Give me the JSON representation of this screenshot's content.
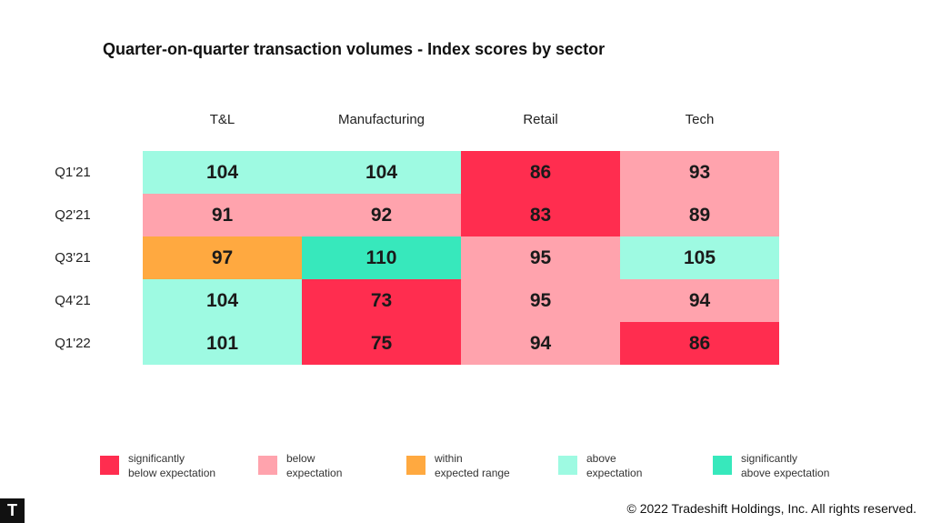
{
  "chart_data": {
    "type": "heatmap",
    "title": "Quarter-on-quarter transaction volumes - Index scores by sector",
    "columns": [
      "T&L",
      "Manufacturing",
      "Retail",
      "Tech"
    ],
    "rows": [
      "Q1'21",
      "Q2'21",
      "Q3'21",
      "Q4'21",
      "Q1'22"
    ],
    "values": [
      [
        104,
        104,
        86,
        93
      ],
      [
        91,
        92,
        83,
        89
      ],
      [
        97,
        110,
        95,
        105
      ],
      [
        104,
        73,
        95,
        94
      ],
      [
        101,
        75,
        94,
        86
      ]
    ],
    "categories": [
      [
        "above",
        "above",
        "sig_below",
        "below"
      ],
      [
        "below",
        "below",
        "sig_below",
        "below"
      ],
      [
        "within",
        "sig_above",
        "below",
        "above"
      ],
      [
        "above",
        "sig_below",
        "below",
        "below"
      ],
      [
        "above",
        "sig_below",
        "below",
        "sig_below"
      ]
    ],
    "legend": [
      {
        "key": "sig_below",
        "line1": "significantly",
        "line2": "below expectation",
        "color": "#FF2D4F"
      },
      {
        "key": "below",
        "line1": "below",
        "line2": "expectation",
        "color": "#FFA3AD"
      },
      {
        "key": "within",
        "line1": "within",
        "line2": "expected range",
        "color": "#FFA940"
      },
      {
        "key": "above",
        "line1": "above",
        "line2": "expectation",
        "color": "#9EFAE2"
      },
      {
        "key": "sig_above",
        "line1": "significantly",
        "line2": "above expectation",
        "color": "#37E8BC"
      }
    ],
    "legend_placement": "bottom"
  },
  "footer": {
    "logo": "T",
    "copyright": "© 2022 Tradeshift Holdings, Inc. All rights reserved."
  }
}
